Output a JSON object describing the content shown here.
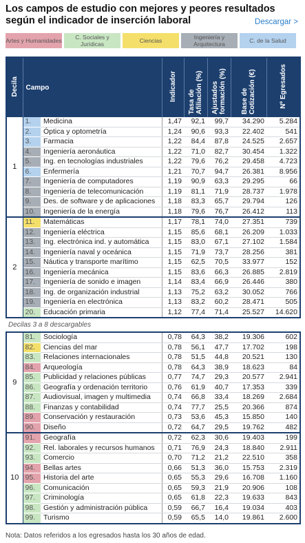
{
  "header": {
    "title": [
      "Los campos de estudio con mejores y peores resultados",
      "según el indicador de inserción laboral"
    ],
    "download": "Descargar >"
  },
  "legend": [
    {
      "label": "Artes y Humanidades",
      "color": "#e3a3ac"
    },
    {
      "label": "C. Sociales y Jurídicas",
      "color": "#c9e6c3"
    },
    {
      "label": "Ciencias",
      "color": "#f4df6b"
    },
    {
      "label": "Ingeniería y Arquitectura",
      "color": "#a7aeb6"
    },
    {
      "label": "C. de la Salud",
      "color": "#b4d2ee"
    }
  ],
  "columns": [
    "Decila",
    "Campo",
    "Indicador",
    "Tasa de Afiliación (%)",
    "Ajustados formación (%)",
    "Base de Cotización (€)",
    "Nº Egresados"
  ],
  "tables": [
    {
      "groups": [
        {
          "decile": "1",
          "rows": [
            {
              "color": "#b4d2ee",
              "cells": [
                "1.",
                "Medicina",
                "1,47",
                "92,1",
                "99,7",
                "34.290",
                "5.284"
              ]
            },
            {
              "color": "#b4d2ee",
              "cells": [
                "2.",
                "Óptica y optometría",
                "1,24",
                "90,6",
                "93,3",
                "22.402",
                "541"
              ]
            },
            {
              "color": "#b4d2ee",
              "cells": [
                "3.",
                "Farmacia",
                "1,22",
                "84,4",
                "87,8",
                "24.525",
                "2.657"
              ]
            },
            {
              "color": "#a7aeb6",
              "cells": [
                "4.",
                "Ingeniería aeronáutica",
                "1,22",
                "71,0",
                "82,7",
                "30.454",
                "1.322"
              ]
            },
            {
              "color": "#a7aeb6",
              "cells": [
                "5.",
                "Ing. en tecnologías industriales",
                "1,22",
                "79,6",
                "76,2",
                "29.458",
                "4.723"
              ]
            },
            {
              "color": "#b4d2ee",
              "cells": [
                "6.",
                "Enfermería",
                "1,21",
                "70,7",
                "94,7",
                "26.381",
                "8.956"
              ]
            },
            {
              "color": "#a7aeb6",
              "cells": [
                "7.",
                "Ingeniería de computadores",
                "1,19",
                "90,9",
                "63,3",
                "29.295",
                "66"
              ]
            },
            {
              "color": "#a7aeb6",
              "cells": [
                "8.",
                "Ingeniería de telecomunicación",
                "1,19",
                "81,1",
                "71,9",
                "28.737",
                "1.978"
              ]
            },
            {
              "color": "#a7aeb6",
              "cells": [
                "9.",
                "Des. de software y de aplicaciones",
                "1,18",
                "83,3",
                "65,7",
                "29.794",
                "126"
              ]
            },
            {
              "color": "#a7aeb6",
              "cells": [
                "10.",
                "Ingeniería de la energía",
                "1,18",
                "79,6",
                "76,7",
                "26.412",
                "113"
              ]
            }
          ]
        },
        {
          "decile": "2",
          "rows": [
            {
              "color": "#f4df6b",
              "cells": [
                "11.",
                "Matemáticas",
                "1,17",
                "78,1",
                "74,0",
                "27.351",
                "739"
              ]
            },
            {
              "color": "#a7aeb6",
              "cells": [
                "12.",
                "Ingeniería eléctrica",
                "1,15",
                "85,6",
                "68,1",
                "26.209",
                "1.033"
              ]
            },
            {
              "color": "#a7aeb6",
              "cells": [
                "13.",
                "Ing. electrónica ind. y automática",
                "1,15",
                "83,0",
                "67,1",
                "27.102",
                "1.584"
              ]
            },
            {
              "color": "#a7aeb6",
              "cells": [
                "14.",
                "Ingeniería naval y oceánica",
                "1,15",
                "71,9",
                "73,7",
                "28.256",
                "381"
              ]
            },
            {
              "color": "#a7aeb6",
              "cells": [
                "15.",
                "Náutica y transporte marítimo",
                "1,15",
                "62,5",
                "70,5",
                "33.977",
                "152"
              ]
            },
            {
              "color": "#a7aeb6",
              "cells": [
                "16.",
                "Ingeniería mecánica",
                "1,15",
                "83,6",
                "66,3",
                "26.885",
                "2.819"
              ]
            },
            {
              "color": "#a7aeb6",
              "cells": [
                "17.",
                "Ingeniería de sonido e imagen",
                "1,14",
                "83,4",
                "66,9",
                "26.446",
                "380"
              ]
            },
            {
              "color": "#a7aeb6",
              "cells": [
                "18.",
                "Ing. de organización industrial",
                "1,13",
                "75,2",
                "63,2",
                "30.052",
                "766"
              ]
            },
            {
              "color": "#a7aeb6",
              "cells": [
                "19.",
                "Ingeniería en electrónica",
                "1,13",
                "83,2",
                "60,2",
                "28.471",
                "505"
              ]
            },
            {
              "color": "#c9e6c3",
              "cells": [
                "20.",
                "Educación primaria",
                "1,12",
                "77,4",
                "71,4",
                "25.527",
                "14.620"
              ]
            }
          ]
        }
      ]
    },
    {
      "groups": [
        {
          "decile": "9",
          "rows": [
            {
              "color": "#c9e6c3",
              "cells": [
                "81.",
                "Sociología",
                "0,78",
                "64,3",
                "38,2",
                "19.306",
                "602"
              ]
            },
            {
              "color": "#f4df6b",
              "cells": [
                "82.",
                "Ciencias del mar",
                "0,78",
                "56,1",
                "47,7",
                "17.702",
                "198"
              ]
            },
            {
              "color": "#c9e6c3",
              "cells": [
                "83.",
                "Relaciones internacionales",
                "0,78",
                "51,5",
                "44,8",
                "20.521",
                "130"
              ]
            },
            {
              "color": "#e3a3ac",
              "cells": [
                "84.",
                "Arqueología",
                "0,78",
                "64,3",
                "38,9",
                "18.623",
                "84"
              ]
            },
            {
              "color": "#c9e6c3",
              "cells": [
                "85.",
                "Publicidad y relaciones públicas",
                "0,77",
                "74,7",
                "29,3",
                "20.577",
                "2.941"
              ]
            },
            {
              "color": "#c9e6c3",
              "cells": [
                "86.",
                "Geografía y ordenación territorio",
                "0,76",
                "61,9",
                "40,7",
                "17.353",
                "339"
              ]
            },
            {
              "color": "#c9e6c3",
              "cells": [
                "87.",
                "Audiovisual, imagen y multimedia",
                "0,74",
                "66,8",
                "33,4",
                "18.269",
                "2.684"
              ]
            },
            {
              "color": "#c9e6c3",
              "cells": [
                "88.",
                "Finanzas y contabilidad",
                "0,74",
                "77,7",
                "25,5",
                "20.366",
                "874"
              ]
            },
            {
              "color": "#e3a3ac",
              "cells": [
                "89.",
                "Conservación y restauración",
                "0,73",
                "53,6",
                "45,3",
                "15.850",
                "140"
              ]
            },
            {
              "color": "#e3a3ac",
              "cells": [
                "90.",
                "Diseño",
                "0,72",
                "64,7",
                "29,5",
                "19.762",
                "482"
              ]
            }
          ]
        },
        {
          "decile": "10",
          "rows": [
            {
              "color": "#e3a3ac",
              "cells": [
                "91.",
                "Geografía",
                "0,72",
                "62,3",
                "30,6",
                "19.403",
                "199"
              ]
            },
            {
              "color": "#c9e6c3",
              "cells": [
                "92.",
                "Rel. laborales y recursos humanos",
                "0,71",
                "76,9",
                "24,3",
                "18.840",
                "2.911"
              ]
            },
            {
              "color": "#c9e6c3",
              "cells": [
                "93.",
                "Comercio",
                "0,70",
                "71,2",
                "21,2",
                "22.510",
                "358"
              ]
            },
            {
              "color": "#e3a3ac",
              "cells": [
                "94.",
                "Bellas artes",
                "0,66",
                "51,3",
                "36,0",
                "15.753",
                "2.319"
              ]
            },
            {
              "color": "#e3a3ac",
              "cells": [
                "95.",
                "Historia del arte",
                "0,65",
                "55,3",
                "29,6",
                "16.708",
                "1.160"
              ]
            },
            {
              "color": "#c9e6c3",
              "cells": [
                "96.",
                "Comunicación",
                "0,65",
                "59,3",
                "21,9",
                "20.906",
                "108"
              ]
            },
            {
              "color": "#c9e6c3",
              "cells": [
                "97.",
                "Criminología",
                "0,65",
                "61,8",
                "22,3",
                "19.633",
                "843"
              ]
            },
            {
              "color": "#c9e6c3",
              "cells": [
                "98.",
                "Gestión y administración pública",
                "0,59",
                "66,7",
                "16,4",
                "19.034",
                "403"
              ]
            },
            {
              "color": "#c9e6c3",
              "cells": [
                "99.",
                "Turismo",
                "0,59",
                "65,5",
                "14,0",
                "19.861",
                "2.600"
              ]
            }
          ]
        }
      ]
    }
  ],
  "separator": "Decilas 3 a 8 descargables",
  "footnote": "Nota: Datos referidos a los egresados hasta los 30 años de edad."
}
